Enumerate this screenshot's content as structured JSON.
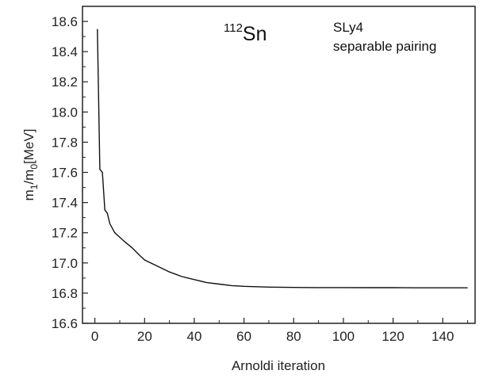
{
  "chart_data": {
    "type": "line",
    "title": "",
    "xlabel": "Arnoldi iteration",
    "ylabel": {
      "m": "m",
      "s1": "1",
      "slash": "/m",
      "s0": "0",
      "unit": "[MeV]"
    },
    "xlim": [
      -5,
      153
    ],
    "ylim": [
      16.6,
      18.7
    ],
    "x_ticks": [
      0,
      20,
      40,
      60,
      80,
      100,
      120,
      140
    ],
    "x_tick_labels": [
      "0",
      "20",
      "40",
      "60",
      "80",
      "100",
      "120",
      "140"
    ],
    "y_ticks": [
      16.6,
      16.8,
      17.0,
      17.2,
      17.4,
      17.6,
      17.8,
      18.0,
      18.2,
      18.4,
      18.6
    ],
    "y_tick_labels": [
      "16.6",
      "16.8",
      "17.0",
      "17.2",
      "17.4",
      "17.6",
      "17.8",
      "18.0",
      "18.2",
      "18.4",
      "18.6"
    ],
    "grid": false,
    "annotations": {
      "nucleus_mass": "112",
      "nucleus_symbol": "Sn",
      "line1": "SLy4",
      "line2": "separable pairing"
    },
    "series": [
      {
        "x": [
          1,
          2,
          3,
          4,
          5,
          6,
          8,
          10,
          12,
          15,
          18,
          20,
          25,
          30,
          35,
          40,
          45,
          50,
          55,
          60,
          70,
          80,
          90,
          100,
          110,
          120,
          130,
          140,
          150
        ],
        "y": [
          18.55,
          17.62,
          17.6,
          17.35,
          17.33,
          17.26,
          17.2,
          17.17,
          17.14,
          17.1,
          17.05,
          17.02,
          16.98,
          16.94,
          16.91,
          16.89,
          16.87,
          16.86,
          16.85,
          16.845,
          16.84,
          16.838,
          16.837,
          16.837,
          16.836,
          16.836,
          16.835,
          16.835,
          16.835
        ]
      }
    ],
    "colors": {
      "line": "#111111",
      "axis": "#222222"
    }
  }
}
